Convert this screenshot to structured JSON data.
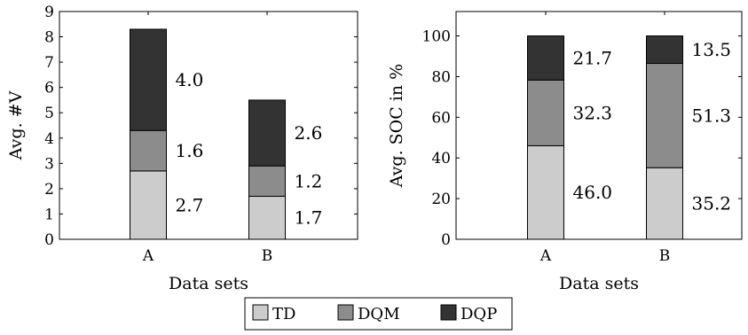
{
  "legend": [
    {
      "name": "TD",
      "color": "#cccccc"
    },
    {
      "name": "DQM",
      "color": "#8c8c8c"
    },
    {
      "name": "DQP",
      "color": "#333333"
    }
  ],
  "chart_data": [
    {
      "type": "bar",
      "stacked": true,
      "categories": [
        "A",
        "B"
      ],
      "xlabel": "Data sets",
      "ylabel": "Avg. #V",
      "ylim": [
        0,
        9
      ],
      "yticks": [
        0,
        1,
        2,
        3,
        4,
        5,
        6,
        7,
        8,
        9
      ],
      "series": [
        {
          "name": "TD",
          "values": [
            2.7,
            1.7
          ],
          "labels": [
            "2.7",
            "1.7"
          ]
        },
        {
          "name": "DQM",
          "values": [
            1.6,
            1.2
          ],
          "labels": [
            "1.6",
            "1.2"
          ]
        },
        {
          "name": "DQP",
          "values": [
            4.0,
            2.6
          ],
          "labels": [
            "4.0",
            "2.6"
          ]
        }
      ]
    },
    {
      "type": "bar",
      "stacked": true,
      "categories": [
        "A",
        "B"
      ],
      "xlabel": "Data sets",
      "ylabel": "Avg. SOC in %",
      "ylim": [
        0,
        112
      ],
      "yticks": [
        0,
        20,
        40,
        60,
        80,
        100
      ],
      "series": [
        {
          "name": "TD",
          "values": [
            46.0,
            35.2
          ],
          "labels": [
            "46.0",
            "35.2"
          ]
        },
        {
          "name": "DQM",
          "values": [
            32.3,
            51.3
          ],
          "labels": [
            "32.3",
            "51.3"
          ]
        },
        {
          "name": "DQP",
          "values": [
            21.7,
            13.5
          ],
          "labels": [
            "21.7",
            "13.5"
          ]
        }
      ]
    }
  ]
}
